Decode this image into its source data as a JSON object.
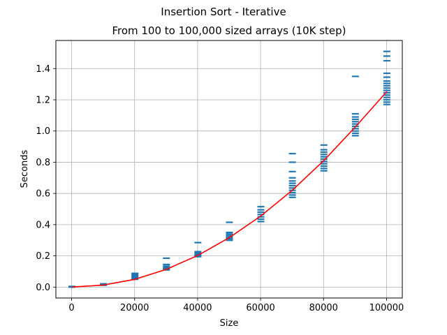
{
  "chart_data": {
    "type": "scatter",
    "title": "Insertion Sort - Iterative",
    "subtitle": "From 100 to 100,000 sized arrays (10K step)",
    "xlabel": "Size",
    "ylabel": "Seconds",
    "xlim": [
      -5000,
      105000
    ],
    "ylim": [
      -0.07,
      1.58
    ],
    "x_ticks": [
      0,
      20000,
      40000,
      60000,
      80000,
      100000
    ],
    "y_ticks": [
      0.0,
      0.2,
      0.4,
      0.6,
      0.8,
      1.0,
      1.2,
      1.4
    ],
    "x_tick_labels": [
      "0",
      "20000",
      "40000",
      "60000",
      "80000",
      "100000"
    ],
    "y_tick_labels": [
      "0.0",
      "0.2",
      "0.4",
      "0.6",
      "0.8",
      "1.0",
      "1.2",
      "1.4"
    ],
    "grid": true,
    "series": [
      {
        "kind": "markers",
        "color": "#1f77b4",
        "points": [
          {
            "x": 100,
            "y": 0.0
          },
          {
            "x": 100,
            "y": 0.002
          },
          {
            "x": 100,
            "y": 0.004
          },
          {
            "x": 10100,
            "y": 0.012
          },
          {
            "x": 10100,
            "y": 0.015
          },
          {
            "x": 10100,
            "y": 0.018
          },
          {
            "x": 10100,
            "y": 0.021
          },
          {
            "x": 20100,
            "y": 0.05
          },
          {
            "x": 20100,
            "y": 0.058
          },
          {
            "x": 20100,
            "y": 0.066
          },
          {
            "x": 20100,
            "y": 0.074
          },
          {
            "x": 20100,
            "y": 0.082
          },
          {
            "x": 20100,
            "y": 0.088
          },
          {
            "x": 30100,
            "y": 0.11
          },
          {
            "x": 30100,
            "y": 0.118
          },
          {
            "x": 30100,
            "y": 0.126
          },
          {
            "x": 30100,
            "y": 0.134
          },
          {
            "x": 30100,
            "y": 0.145
          },
          {
            "x": 30100,
            "y": 0.185
          },
          {
            "x": 40100,
            "y": 0.195
          },
          {
            "x": 40100,
            "y": 0.203
          },
          {
            "x": 40100,
            "y": 0.211
          },
          {
            "x": 40100,
            "y": 0.219
          },
          {
            "x": 40100,
            "y": 0.227
          },
          {
            "x": 40100,
            "y": 0.285
          },
          {
            "x": 50100,
            "y": 0.3
          },
          {
            "x": 50100,
            "y": 0.31
          },
          {
            "x": 50100,
            "y": 0.32
          },
          {
            "x": 50100,
            "y": 0.33
          },
          {
            "x": 50100,
            "y": 0.34
          },
          {
            "x": 50100,
            "y": 0.35
          },
          {
            "x": 50100,
            "y": 0.415
          },
          {
            "x": 60100,
            "y": 0.42
          },
          {
            "x": 60100,
            "y": 0.435
          },
          {
            "x": 60100,
            "y": 0.45
          },
          {
            "x": 60100,
            "y": 0.465
          },
          {
            "x": 60100,
            "y": 0.48
          },
          {
            "x": 60100,
            "y": 0.495
          },
          {
            "x": 60100,
            "y": 0.515
          },
          {
            "x": 70100,
            "y": 0.575
          },
          {
            "x": 70100,
            "y": 0.59
          },
          {
            "x": 70100,
            "y": 0.605
          },
          {
            "x": 70100,
            "y": 0.62
          },
          {
            "x": 70100,
            "y": 0.635
          },
          {
            "x": 70100,
            "y": 0.65
          },
          {
            "x": 70100,
            "y": 0.665
          },
          {
            "x": 70100,
            "y": 0.68
          },
          {
            "x": 70100,
            "y": 0.7
          },
          {
            "x": 70100,
            "y": 0.74
          },
          {
            "x": 70100,
            "y": 0.8
          },
          {
            "x": 70100,
            "y": 0.855
          },
          {
            "x": 80100,
            "y": 0.745
          },
          {
            "x": 80100,
            "y": 0.76
          },
          {
            "x": 80100,
            "y": 0.775
          },
          {
            "x": 80100,
            "y": 0.79
          },
          {
            "x": 80100,
            "y": 0.805
          },
          {
            "x": 80100,
            "y": 0.82
          },
          {
            "x": 80100,
            "y": 0.835
          },
          {
            "x": 80100,
            "y": 0.85
          },
          {
            "x": 80100,
            "y": 0.865
          },
          {
            "x": 80100,
            "y": 0.88
          },
          {
            "x": 80100,
            "y": 0.91
          },
          {
            "x": 90100,
            "y": 0.97
          },
          {
            "x": 90100,
            "y": 0.985
          },
          {
            "x": 90100,
            "y": 1.0
          },
          {
            "x": 90100,
            "y": 1.015
          },
          {
            "x": 90100,
            "y": 1.03
          },
          {
            "x": 90100,
            "y": 1.045
          },
          {
            "x": 90100,
            "y": 1.06
          },
          {
            "x": 90100,
            "y": 1.075
          },
          {
            "x": 90100,
            "y": 1.09
          },
          {
            "x": 90100,
            "y": 1.11
          },
          {
            "x": 90100,
            "y": 1.35
          },
          {
            "x": 100100,
            "y": 1.17
          },
          {
            "x": 100100,
            "y": 1.185
          },
          {
            "x": 100100,
            "y": 1.2
          },
          {
            "x": 100100,
            "y": 1.215
          },
          {
            "x": 100100,
            "y": 1.23
          },
          {
            "x": 100100,
            "y": 1.245
          },
          {
            "x": 100100,
            "y": 1.26
          },
          {
            "x": 100100,
            "y": 1.275
          },
          {
            "x": 100100,
            "y": 1.29
          },
          {
            "x": 100100,
            "y": 1.305
          },
          {
            "x": 100100,
            "y": 1.32
          },
          {
            "x": 100100,
            "y": 1.345
          },
          {
            "x": 100100,
            "y": 1.37
          },
          {
            "x": 100100,
            "y": 1.45
          },
          {
            "x": 100100,
            "y": 1.48
          },
          {
            "x": 100100,
            "y": 1.51
          }
        ]
      },
      {
        "kind": "line",
        "color": "#ff0000",
        "x": [
          100,
          10100,
          20100,
          30100,
          40100,
          50100,
          60100,
          70100,
          80100,
          90100,
          100100
        ],
        "y": [
          0.0,
          0.013,
          0.05,
          0.114,
          0.203,
          0.317,
          0.456,
          0.621,
          0.811,
          1.026,
          1.253
        ]
      }
    ]
  }
}
